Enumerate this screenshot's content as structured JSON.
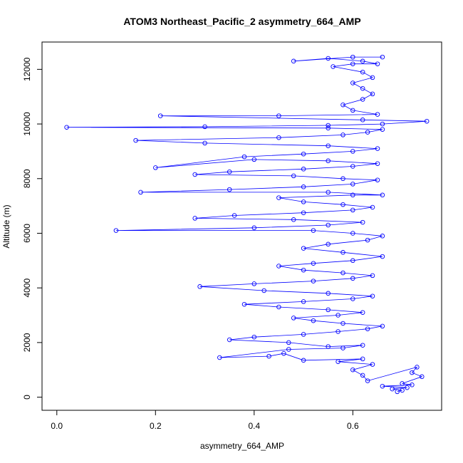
{
  "chart_data": {
    "type": "scatter",
    "title": "ATOM3 Northeast_Pacific_2 asymmetry_664_AMP",
    "xlabel": "asymmetry_664_AMP",
    "ylabel": "Altitude (m)",
    "xlim": [
      0.0,
      0.75
    ],
    "ylim": [
      0,
      12600
    ],
    "x_ticks": [
      "0.0",
      "0.2",
      "0.4",
      "0.6"
    ],
    "x_tick_values": [
      0.0,
      0.2,
      0.4,
      0.6
    ],
    "y_ticks": [
      "0",
      "2000",
      "4000",
      "6000",
      "8000",
      "10000",
      "12000"
    ],
    "y_tick_values": [
      0,
      2000,
      4000,
      6000,
      8000,
      10000,
      12000
    ],
    "grid": false,
    "legend": "none",
    "marker": "open-circle",
    "connected": true,
    "series_color": "#0000ff",
    "series": [
      {
        "points": [
          [
            0.69,
            200
          ],
          [
            0.7,
            250
          ],
          [
            0.68,
            300
          ],
          [
            0.71,
            350
          ],
          [
            0.66,
            400
          ],
          [
            0.72,
            450
          ],
          [
            0.7,
            500
          ],
          [
            0.74,
            750
          ],
          [
            0.72,
            900
          ],
          [
            0.73,
            1100
          ],
          [
            0.63,
            600
          ],
          [
            0.62,
            800
          ],
          [
            0.6,
            1000
          ],
          [
            0.64,
            1200
          ],
          [
            0.57,
            1300
          ],
          [
            0.62,
            1400
          ],
          [
            0.5,
            1350
          ],
          [
            0.46,
            1600
          ],
          [
            0.43,
            1500
          ],
          [
            0.33,
            1450
          ],
          [
            0.47,
            1750
          ],
          [
            0.58,
            1800
          ],
          [
            0.62,
            1900
          ],
          [
            0.55,
            1850
          ],
          [
            0.47,
            2000
          ],
          [
            0.35,
            2100
          ],
          [
            0.4,
            2200
          ],
          [
            0.5,
            2300
          ],
          [
            0.57,
            2400
          ],
          [
            0.63,
            2500
          ],
          [
            0.66,
            2600
          ],
          [
            0.58,
            2700
          ],
          [
            0.52,
            2800
          ],
          [
            0.48,
            2900
          ],
          [
            0.57,
            3000
          ],
          [
            0.62,
            3100
          ],
          [
            0.55,
            3200
          ],
          [
            0.45,
            3300
          ],
          [
            0.38,
            3400
          ],
          [
            0.5,
            3500
          ],
          [
            0.6,
            3600
          ],
          [
            0.64,
            3700
          ],
          [
            0.55,
            3800
          ],
          [
            0.42,
            3900
          ],
          [
            0.29,
            4050
          ],
          [
            0.4,
            4150
          ],
          [
            0.52,
            4250
          ],
          [
            0.6,
            4350
          ],
          [
            0.64,
            4450
          ],
          [
            0.58,
            4550
          ],
          [
            0.5,
            4650
          ],
          [
            0.45,
            4800
          ],
          [
            0.52,
            4900
          ],
          [
            0.6,
            5000
          ],
          [
            0.66,
            5150
          ],
          [
            0.58,
            5300
          ],
          [
            0.5,
            5450
          ],
          [
            0.55,
            5600
          ],
          [
            0.63,
            5750
          ],
          [
            0.66,
            5900
          ],
          [
            0.6,
            6000
          ],
          [
            0.52,
            6100
          ],
          [
            0.12,
            6100
          ],
          [
            0.4,
            6200
          ],
          [
            0.55,
            6300
          ],
          [
            0.62,
            6400
          ],
          [
            0.48,
            6500
          ],
          [
            0.28,
            6550
          ],
          [
            0.36,
            6650
          ],
          [
            0.5,
            6750
          ],
          [
            0.6,
            6850
          ],
          [
            0.64,
            6950
          ],
          [
            0.58,
            7050
          ],
          [
            0.5,
            7150
          ],
          [
            0.45,
            7300
          ],
          [
            0.6,
            7400
          ],
          [
            0.66,
            7400
          ],
          [
            0.55,
            7500
          ],
          [
            0.17,
            7500
          ],
          [
            0.35,
            7600
          ],
          [
            0.5,
            7700
          ],
          [
            0.6,
            7800
          ],
          [
            0.65,
            7950
          ],
          [
            0.58,
            8000
          ],
          [
            0.48,
            8100
          ],
          [
            0.28,
            8150
          ],
          [
            0.35,
            8250
          ],
          [
            0.5,
            8350
          ],
          [
            0.6,
            8450
          ],
          [
            0.65,
            8550
          ],
          [
            0.55,
            8650
          ],
          [
            0.4,
            8700
          ],
          [
            0.2,
            8400
          ],
          [
            0.38,
            8800
          ],
          [
            0.5,
            8900
          ],
          [
            0.6,
            9000
          ],
          [
            0.65,
            9100
          ],
          [
            0.55,
            9200
          ],
          [
            0.3,
            9300
          ],
          [
            0.16,
            9400
          ],
          [
            0.45,
            9500
          ],
          [
            0.58,
            9600
          ],
          [
            0.63,
            9700
          ],
          [
            0.66,
            9800
          ],
          [
            0.55,
            9850
          ],
          [
            0.02,
            9880
          ],
          [
            0.3,
            9900
          ],
          [
            0.55,
            9950
          ],
          [
            0.66,
            10000
          ],
          [
            0.75,
            10100
          ],
          [
            0.62,
            10150
          ],
          [
            0.21,
            10300
          ],
          [
            0.45,
            10300
          ],
          [
            0.65,
            10350
          ],
          [
            0.6,
            10500
          ],
          [
            0.58,
            10700
          ],
          [
            0.62,
            10900
          ],
          [
            0.64,
            11100
          ],
          [
            0.62,
            11300
          ],
          [
            0.6,
            11500
          ],
          [
            0.64,
            11700
          ],
          [
            0.62,
            11900
          ],
          [
            0.56,
            12100
          ],
          [
            0.6,
            12200
          ],
          [
            0.65,
            12200
          ],
          [
            0.62,
            12300
          ],
          [
            0.55,
            12400
          ],
          [
            0.48,
            12300
          ],
          [
            0.6,
            12450
          ],
          [
            0.66,
            12450
          ]
        ]
      }
    ]
  }
}
